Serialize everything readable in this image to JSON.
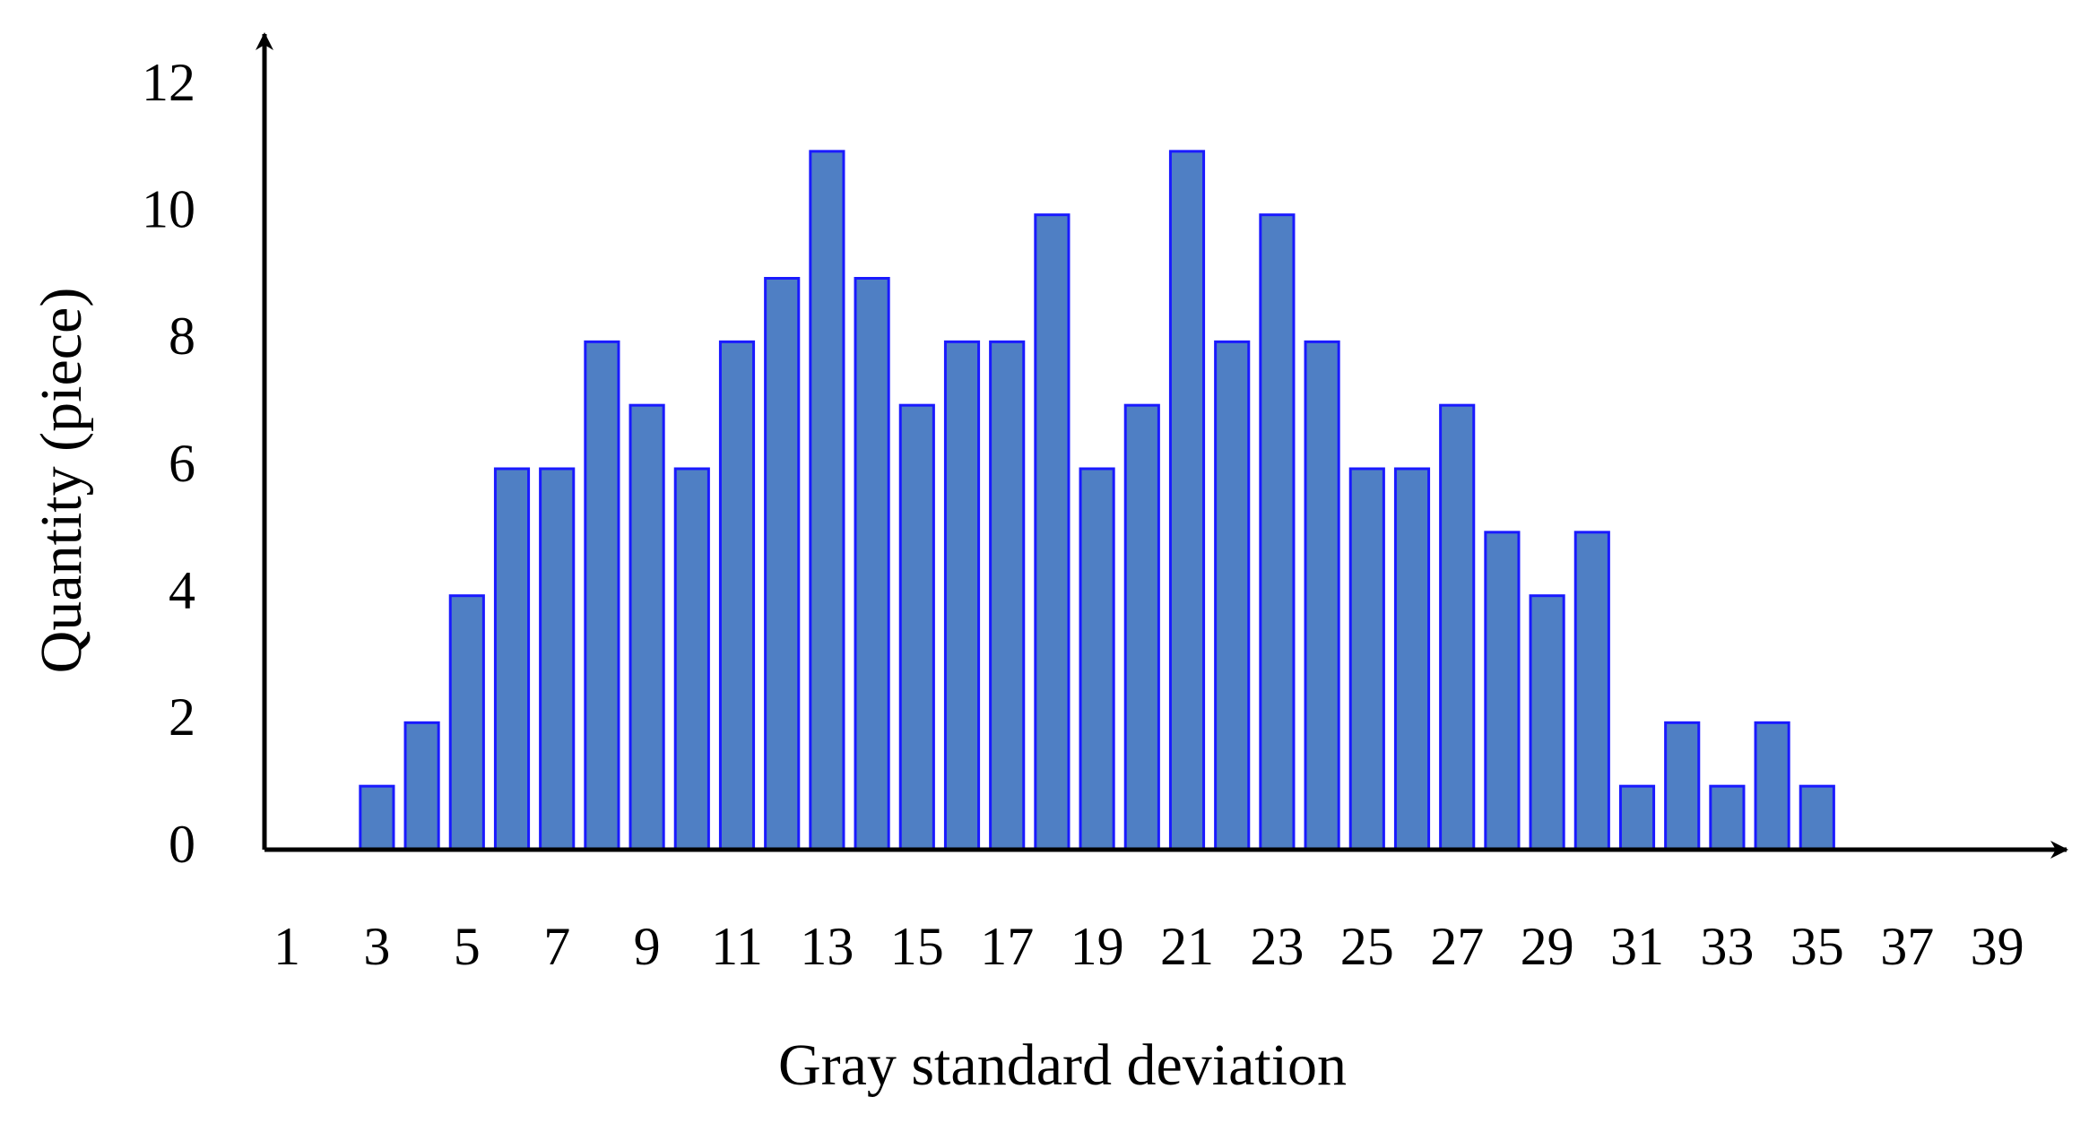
{
  "chart_data": {
    "type": "bar",
    "x_label": "Gray standard deviation",
    "y_label": "Quantity (piece)",
    "categories": [
      "1",
      null,
      "3",
      null,
      "5",
      null,
      "7",
      null,
      "9",
      null,
      "11",
      null,
      "13",
      null,
      "15",
      null,
      "17",
      null,
      "19",
      null,
      "21",
      null,
      "23",
      null,
      "25",
      null,
      "27",
      null,
      "29",
      null,
      "31",
      null,
      "33",
      null,
      "35",
      null,
      "37",
      null,
      "39"
    ],
    "values": [
      0,
      0,
      1,
      2,
      4,
      6,
      6,
      8,
      7,
      6,
      8,
      9,
      11,
      9,
      7,
      8,
      8,
      10,
      6,
      7,
      11,
      8,
      10,
      8,
      6,
      6,
      7,
      5,
      4,
      5,
      1,
      2,
      1,
      2,
      1,
      0,
      0,
      0,
      0
    ],
    "color": "#4f7fc4",
    "edge_color": "#1a1aff",
    "ylim": [
      0,
      12
    ],
    "yticks": [
      0,
      2,
      4,
      6,
      8,
      10,
      12
    ],
    "grid": false
  }
}
